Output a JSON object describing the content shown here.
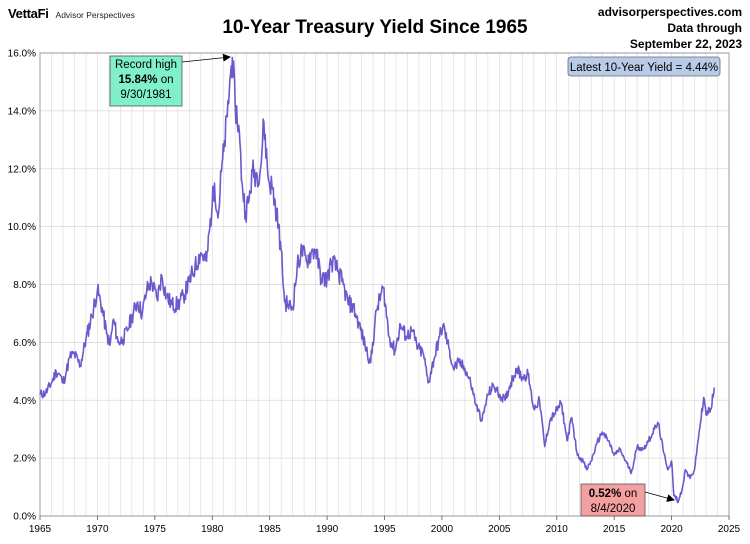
{
  "header": {
    "brand_logo": "VettaFi",
    "brand_sub": "Advisor Perspectives",
    "title": "10-Year Treasury Yield Since 1965",
    "source_line1": "advisorperspectives.com",
    "source_line2": "Data through",
    "source_line3": "September 22, 2023"
  },
  "annotations": {
    "record": {
      "line1": "Record high",
      "value": "15.84%",
      "on": " on",
      "date": "9/30/1981"
    },
    "low": {
      "value": "0.52%",
      "on": " on",
      "date": "8/4/2020"
    },
    "latest": "Latest 10-Year Yield = 4.44%"
  },
  "colors": {
    "line": "#6A5ACD",
    "record_box": "#7FF0C8",
    "low_box": "#F4A0A0",
    "latest_box": "#B8CCE8",
    "grid": "#D9D9D9"
  },
  "chart_data": {
    "type": "line",
    "title": "10-Year Treasury Yield Since 1965",
    "xlabel": "",
    "ylabel": "",
    "xlim": [
      1965,
      2025
    ],
    "ylim": [
      0,
      16
    ],
    "x_ticks": [
      1965,
      1970,
      1975,
      1980,
      1985,
      1990,
      1995,
      2000,
      2005,
      2010,
      2015,
      2020,
      2025
    ],
    "y_ticks": [
      "0.0%",
      "2.0%",
      "4.0%",
      "6.0%",
      "8.0%",
      "10.0%",
      "12.0%",
      "14.0%",
      "16.0%"
    ],
    "grid": true,
    "series": [
      {
        "x": [
          1965.0,
          1965.5,
          1966.0,
          1966.4,
          1966.7,
          1967.0,
          1967.3,
          1967.6,
          1968.0,
          1968.5,
          1969.0,
          1969.5,
          1970.0,
          1970.4,
          1970.8,
          1971.1,
          1971.4,
          1971.8,
          1972.2,
          1972.6,
          1973.0,
          1973.5,
          1973.9,
          1974.3,
          1974.7,
          1975.2,
          1975.6,
          1976.0,
          1976.5,
          1977.0,
          1977.5,
          1978.0,
          1978.5,
          1979.0,
          1979.5,
          1980.0,
          1980.2,
          1980.5,
          1980.8,
          1981.0,
          1981.3,
          1981.6,
          1981.75,
          1982.0,
          1982.3,
          1982.6,
          1982.9,
          1983.2,
          1983.5,
          1983.9,
          1984.2,
          1984.5,
          1984.9,
          1985.2,
          1985.6,
          1986.0,
          1986.3,
          1986.6,
          1987.0,
          1987.4,
          1987.8,
          1988.2,
          1988.6,
          1989.0,
          1989.5,
          1990.0,
          1990.4,
          1990.8,
          1991.3,
          1991.8,
          1992.3,
          1992.8,
          1993.3,
          1993.8,
          1994.3,
          1994.9,
          1995.4,
          1995.9,
          1996.4,
          1996.9,
          1997.4,
          1997.9,
          1998.4,
          1998.8,
          1999.3,
          1999.8,
          2000.1,
          2000.6,
          2001.0,
          2001.5,
          2002.0,
          2002.5,
          2003.0,
          2003.5,
          2004.0,
          2004.5,
          2005.0,
          2005.5,
          2006.0,
          2006.5,
          2007.0,
          2007.5,
          2008.0,
          2008.5,
          2008.95,
          2009.4,
          2009.9,
          2010.4,
          2010.9,
          2011.3,
          2011.8,
          2012.3,
          2012.6,
          2013.0,
          2013.5,
          2013.95,
          2014.5,
          2015.0,
          2015.5,
          2016.0,
          2016.5,
          2017.0,
          2017.5,
          2018.0,
          2018.5,
          2018.85,
          2019.3,
          2019.7,
          2020.0,
          2020.2,
          2020.6,
          2020.9,
          2021.2,
          2021.6,
          2022.0,
          2022.4,
          2022.8,
          2023.0,
          2023.4,
          2023.72
        ],
        "y": [
          4.2,
          4.25,
          4.6,
          5.0,
          4.9,
          4.6,
          5.0,
          5.5,
          5.6,
          5.2,
          6.1,
          6.9,
          7.8,
          7.2,
          6.3,
          5.9,
          6.8,
          6.0,
          6.1,
          6.4,
          6.9,
          7.4,
          7.0,
          7.8,
          8.1,
          7.5,
          8.3,
          7.6,
          7.3,
          7.3,
          7.6,
          8.1,
          8.6,
          9.1,
          8.8,
          10.8,
          11.5,
          10.3,
          11.9,
          12.6,
          13.8,
          15.3,
          15.84,
          14.2,
          13.5,
          11.5,
          10.5,
          10.9,
          11.9,
          11.8,
          12.0,
          13.6,
          11.6,
          11.4,
          10.5,
          9.2,
          7.4,
          7.3,
          7.2,
          8.6,
          9.2,
          8.8,
          9.1,
          9.2,
          8.2,
          8.2,
          8.8,
          8.6,
          8.1,
          7.4,
          7.2,
          6.6,
          5.9,
          5.3,
          7.1,
          7.9,
          6.2,
          5.7,
          6.6,
          6.2,
          6.4,
          5.8,
          5.6,
          4.6,
          5.4,
          6.2,
          6.6,
          5.8,
          5.1,
          5.3,
          5.1,
          4.6,
          3.8,
          3.3,
          4.2,
          4.5,
          4.2,
          4.0,
          4.6,
          5.1,
          4.8,
          4.9,
          3.7,
          4.0,
          2.4,
          3.3,
          3.6,
          3.9,
          2.6,
          3.4,
          2.1,
          1.9,
          1.6,
          1.9,
          2.5,
          2.9,
          2.6,
          2.1,
          2.3,
          1.9,
          1.5,
          2.4,
          2.3,
          2.6,
          3.0,
          3.2,
          2.2,
          1.6,
          1.9,
          0.7,
          0.52,
          0.9,
          1.6,
          1.3,
          1.6,
          2.9,
          4.1,
          3.5,
          3.7,
          4.44
        ]
      }
    ]
  }
}
